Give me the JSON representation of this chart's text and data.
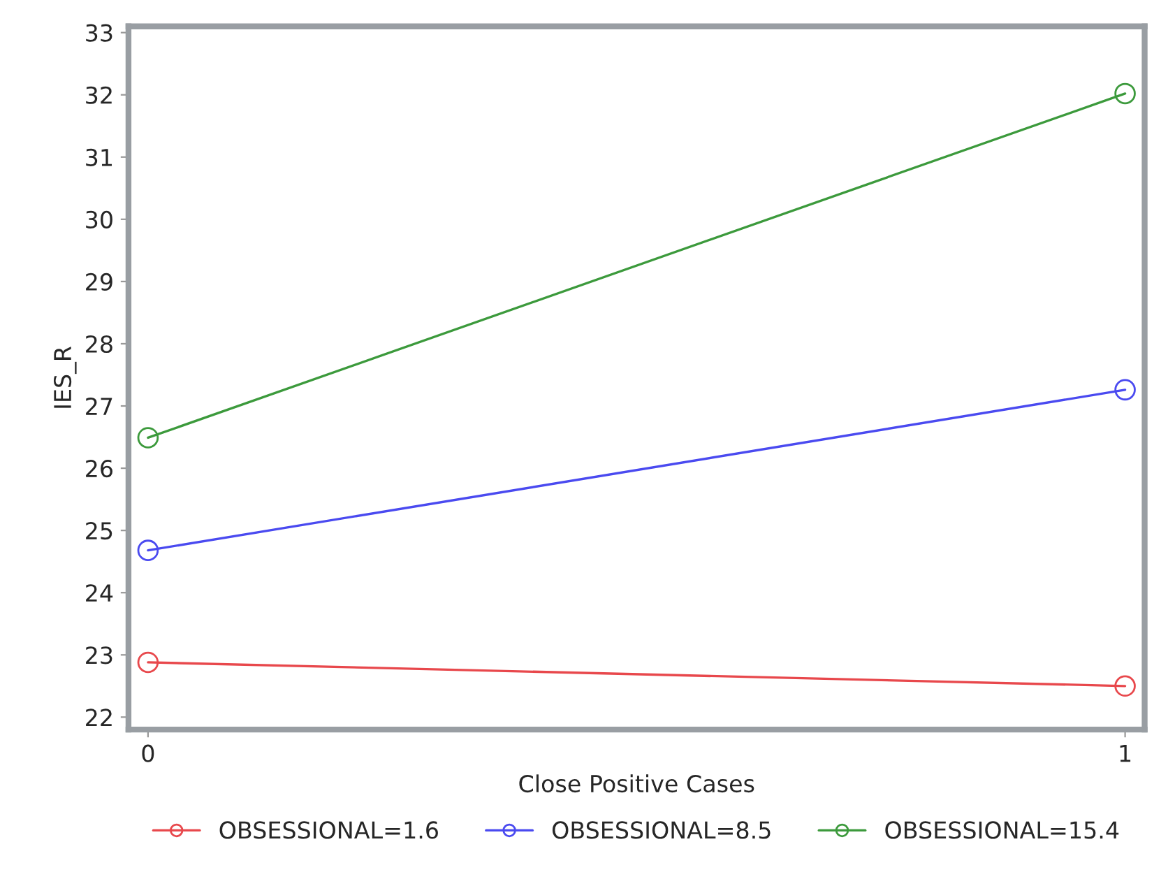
{
  "chart_data": {
    "type": "line",
    "xlabel": "Close Positive Cases",
    "ylabel": "IES_R",
    "x": [
      0,
      1
    ],
    "xlim": [
      -0.02,
      1.02
    ],
    "xticks": [
      0,
      1
    ],
    "ylim": [
      21.8,
      33.1
    ],
    "yticks": [
      22,
      23,
      24,
      25,
      26,
      27,
      28,
      29,
      30,
      31,
      32,
      33
    ],
    "marker": "circle",
    "line_style": "solid",
    "grid": false,
    "legend": "bottom",
    "series": [
      {
        "name": "OBSESSIONAL=1.6",
        "color": "#e8484c",
        "values": [
          22.88,
          22.5
        ]
      },
      {
        "name": "OBSESSIONAL=8.5",
        "color": "#4a4af0",
        "values": [
          24.68,
          27.26
        ]
      },
      {
        "name": "OBSESSIONAL=15.4",
        "color": "#3c9a3c",
        "values": [
          26.49,
          32.02
        ]
      }
    ]
  }
}
